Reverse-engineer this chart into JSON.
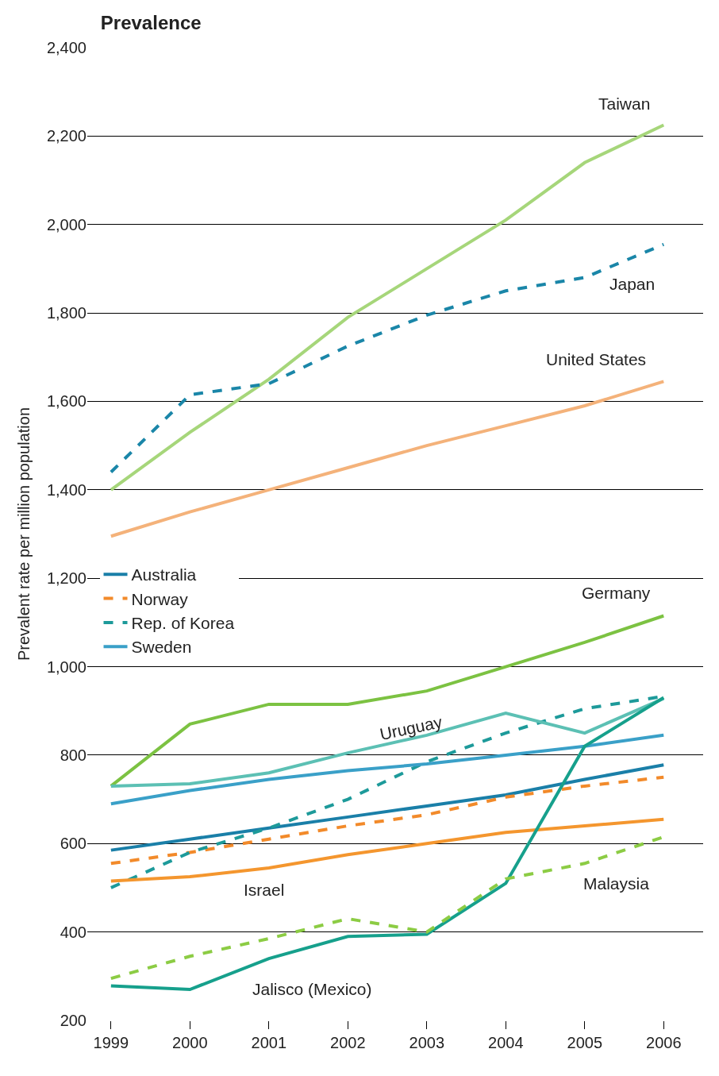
{
  "chart_data": {
    "type": "line",
    "title": "Prevalence",
    "ylabel": "Prevalent rate per million population",
    "x": [
      1999,
      2000,
      2001,
      2002,
      2003,
      2004,
      2005,
      2006
    ],
    "xlim": [
      1998.7,
      2006.5
    ],
    "xticks": [
      1999,
      2000,
      2001,
      2002,
      2003,
      2004,
      2005,
      2006
    ],
    "ylim": [
      200,
      2400
    ],
    "yticks": [
      {
        "value": 200,
        "label": "200"
      },
      {
        "value": 400,
        "label": "400"
      },
      {
        "value": 600,
        "label": "600"
      },
      {
        "value": 800,
        "label": "800"
      },
      {
        "value": 1000,
        "label": "1,000"
      },
      {
        "value": 1200,
        "label": "1,200"
      },
      {
        "value": 1400,
        "label": "1,400"
      },
      {
        "value": 1600,
        "label": "1,600"
      },
      {
        "value": 1800,
        "label": "1,800"
      },
      {
        "value": 2000,
        "label": "2,000"
      },
      {
        "value": 2200,
        "label": "2,200"
      },
      {
        "value": 2400,
        "label": "2,400"
      }
    ],
    "grid": "y",
    "legend": "left",
    "marker": "none",
    "series": [
      {
        "name": "Australia",
        "color": "#1a7fa8",
        "values": [
          585,
          610,
          635,
          660,
          685,
          710,
          745,
          778
        ],
        "line_style": "solid"
      },
      {
        "name": "Norway",
        "color": "#f28a2a",
        "values": [
          555,
          580,
          610,
          640,
          665,
          705,
          730,
          750
        ],
        "line_style": "dashed"
      },
      {
        "name": "Rep. of Korea",
        "color": "#1d9a9a",
        "values": [
          500,
          580,
          635,
          700,
          785,
          850,
          905,
          933
        ],
        "line_style": "dashed"
      },
      {
        "name": "Sweden",
        "color": "#3aa0c8",
        "values": [
          690,
          720,
          745,
          765,
          780,
          800,
          820,
          845
        ],
        "line_style": "solid"
      },
      {
        "name": "Taiwan",
        "color": "#a6d67a",
        "values": [
          1400,
          1530,
          1650,
          1790,
          1900,
          2010,
          2140,
          2225
        ],
        "line_style": "solid"
      },
      {
        "name": "Japan",
        "color": "#1a86a8",
        "values": [
          1440,
          1615,
          1640,
          1725,
          1795,
          1850,
          1880,
          1955
        ],
        "line_style": "dashed"
      },
      {
        "name": "United States",
        "color": "#f4b27a",
        "values": [
          1295,
          1350,
          1400,
          1450,
          1500,
          1545,
          1590,
          1645
        ],
        "line_style": "solid"
      },
      {
        "name": "Germany",
        "color": "#7cc242",
        "values": [
          730,
          870,
          915,
          915,
          945,
          1000,
          1055,
          1115
        ],
        "line_style": "solid"
      },
      {
        "name": "Uruguay",
        "color": "#5cc0b4",
        "values": [
          730,
          735,
          760,
          805,
          845,
          895,
          850,
          928
        ],
        "line_style": "solid"
      },
      {
        "name": "Israel",
        "color": "#f4962e",
        "values": [
          515,
          525,
          545,
          575,
          600,
          625,
          640,
          655
        ],
        "line_style": "solid"
      },
      {
        "name": "Jalisco (Mexico)",
        "color": "#16a08c",
        "values": [
          278,
          270,
          340,
          390,
          395,
          510,
          820,
          930
        ],
        "line_style": "solid"
      },
      {
        "name": "Malaysia",
        "color": "#8ccc44",
        "values": [
          295,
          345,
          385,
          430,
          400,
          520,
          555,
          615
        ],
        "line_style": "dashed"
      }
    ]
  }
}
